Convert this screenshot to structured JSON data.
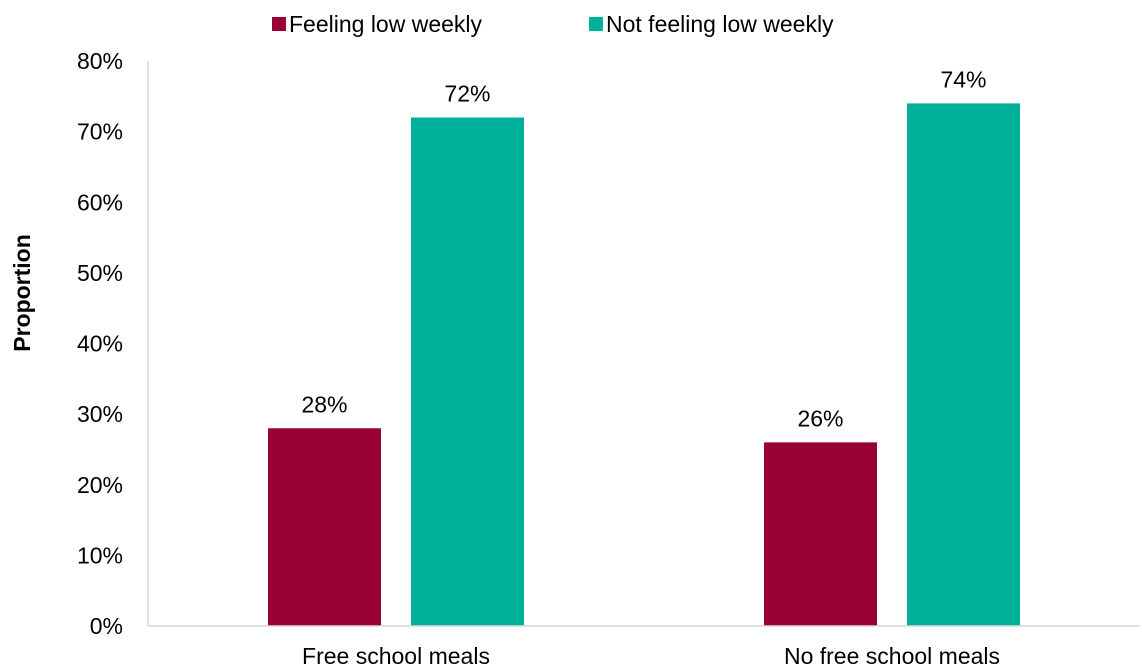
{
  "chart_data": {
    "type": "bar",
    "title": "",
    "xlabel": "",
    "ylabel": "Proportion",
    "categories": [
      "Free school meals",
      "No free school meals"
    ],
    "series": [
      {
        "name": "Feeling low weekly",
        "values": [
          28,
          26
        ],
        "labels": [
          "28%",
          "26%"
        ],
        "color": "#990033"
      },
      {
        "name": "Not feeling low weekly",
        "values": [
          72,
          74
        ],
        "labels": [
          "72%",
          "74%"
        ],
        "color": "#00b09b"
      }
    ],
    "ylim": [
      0,
      80
    ],
    "yticks": [
      0,
      10,
      20,
      30,
      40,
      50,
      60,
      70,
      80
    ],
    "ytick_labels": [
      "0%",
      "10%",
      "20%",
      "30%",
      "40%",
      "50%",
      "60%",
      "70%",
      "80%"
    ],
    "grid": false,
    "legend_position": "top"
  }
}
